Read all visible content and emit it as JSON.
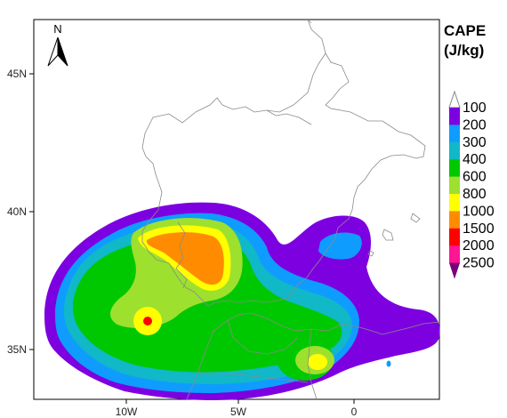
{
  "map": {
    "lat_labels": [
      "45N",
      "40N",
      "35N"
    ],
    "lon_labels": [
      "10W",
      "5W",
      "0"
    ],
    "north_arrow_label": "N",
    "north_arrow_icon": "north-arrow-icon"
  },
  "legend": {
    "title_line1": "CAPE",
    "title_line2": "(J/kg)",
    "levels": [
      {
        "label": "100",
        "color": "#7d00e0"
      },
      {
        "label": "200",
        "color": "#0f9cff"
      },
      {
        "label": "300",
        "color": "#10b8c8"
      },
      {
        "label": "400",
        "color": "#00c800"
      },
      {
        "label": "600",
        "color": "#9ee02e"
      },
      {
        "label": "800",
        "color": "#ffff00"
      },
      {
        "label": "1000",
        "color": "#ff8c00"
      },
      {
        "label": "1500",
        "color": "#ff0000"
      },
      {
        "label": "2000",
        "color": "#ff1493"
      },
      {
        "label": "2500",
        "color": "#7a007a"
      }
    ]
  }
}
